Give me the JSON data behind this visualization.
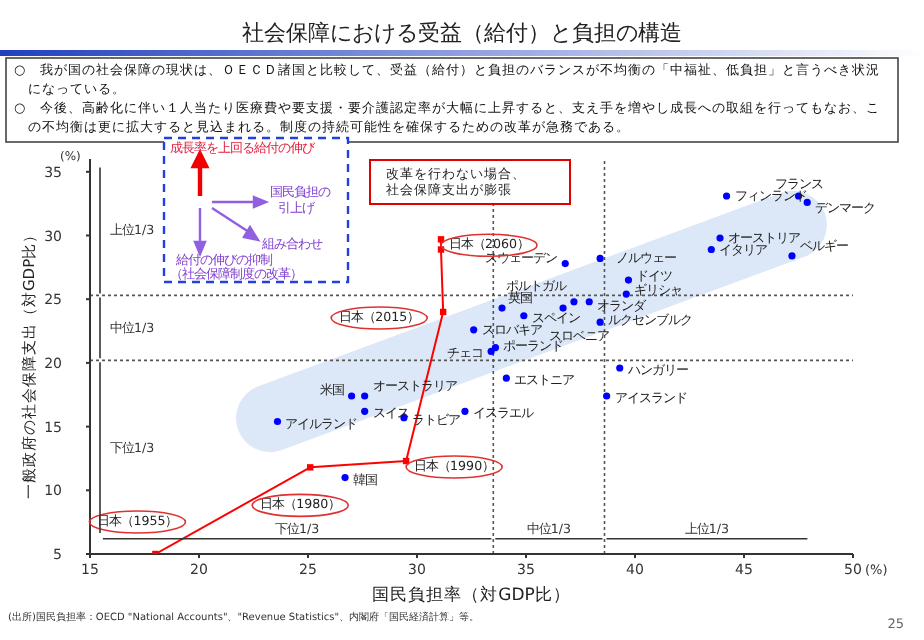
{
  "chart_data": {
    "type": "scatter",
    "title": "社会保障における受益（給付）と負担の構造",
    "subtitle": "○　我が国の社会保障の現状は、ＯＥＣＤ諸国と比較して、受益（給付）と負担のバランスが不均衡の「中福祉、低負担」と言うべき状況になっている。\n○　今後、高齢化に伴い１人当たり医療費や要支援・要介護認定率が大幅に上昇すると、支え手を増やし成長への取組を行ってもなお、この不均衡は更に拡大すると見込まれる。制度の持続可能性を確保するための改革が急務である。",
    "xlabel": "国民負担率（対GDP比）",
    "ylabel": "一般政府の社会保障支出（対GDP比）",
    "xlim": [
      15,
      50
    ],
    "ylim": [
      5,
      36
    ],
    "xticks": [
      15,
      20,
      25,
      30,
      35,
      40,
      45,
      50
    ],
    "yticks": [
      5,
      10,
      15,
      20,
      25,
      30,
      35
    ],
    "grid": false,
    "marker": "circle",
    "series": [
      {
        "color": "#0000ff",
        "x": [
          44.2,
          47.5,
          47.9,
          43.9,
          43.5,
          47.2,
          36.8,
          38.4,
          39.7,
          39.6,
          37.2,
          37.9,
          33.9,
          34.9,
          36.7,
          38.4,
          32.6,
          33.4,
          33.6,
          34.1,
          39.3,
          38.7,
          32.2,
          27.0,
          27.6,
          27.6,
          23.6,
          29.4,
          26.7
        ],
        "values": [
          33.1,
          33.1,
          32.6,
          29.8,
          28.9,
          28.4,
          27.8,
          28.2,
          26.5,
          25.4,
          24.8,
          24.8,
          24.3,
          23.7,
          24.3,
          23.2,
          22.6,
          20.9,
          21.2,
          18.8,
          19.6,
          17.4,
          16.2,
          17.4,
          17.4,
          16.2,
          15.4,
          15.7,
          11.0
        ]
      },
      {
        "type": "line",
        "marker": "square",
        "color": "#ff0000",
        "x": [
          18.0,
          25.1,
          29.5,
          31.2,
          31.1,
          31.1
        ],
        "values": [
          5.0,
          11.8,
          12.3,
          24.0,
          28.9,
          29.7
        ]
      }
    ],
    "ref_lines": [
      {
        "axis": "x",
        "value": 33.5,
        "line_style": "dotted"
      },
      {
        "axis": "x",
        "value": 38.6,
        "line_style": "dotted"
      },
      {
        "axis": "y",
        "value": 25.3,
        "line_style": "dotted"
      },
      {
        "axis": "y",
        "value": 20.2,
        "line_style": "dotted"
      }
    ],
    "annotations": [
      {
        "text": "フィンランド",
        "x": 44.2,
        "y": 33.1
      },
      {
        "text": "フランス",
        "x": 47.5,
        "y": 33.1
      },
      {
        "text": "デンマーク",
        "x": 47.9,
        "y": 32.6
      },
      {
        "text": "オーストリア",
        "x": 43.9,
        "y": 29.8
      },
      {
        "text": "イタリア",
        "x": 43.5,
        "y": 28.9
      },
      {
        "text": "ベルギー",
        "x": 47.2,
        "y": 28.4
      },
      {
        "text": "スウェーデン",
        "x": 36.8,
        "y": 27.8
      },
      {
        "text": "ノルウェー",
        "x": 38.4,
        "y": 28.2
      },
      {
        "text": "ドイツ",
        "x": 39.7,
        "y": 26.5
      },
      {
        "text": "ギリシャ",
        "x": 39.6,
        "y": 25.4
      },
      {
        "text": "ポルトガル",
        "x": 37.2,
        "y": 24.8
      },
      {
        "text": "オランダ",
        "x": 37.9,
        "y": 24.8
      },
      {
        "text": "英国",
        "x": 33.9,
        "y": 24.3
      },
      {
        "text": "スペイン",
        "x": 34.9,
        "y": 23.7
      },
      {
        "text": "スロベニア",
        "x": 36.7,
        "y": 24.3
      },
      {
        "text": "ルクセンブルク",
        "x": 38.4,
        "y": 23.2
      },
      {
        "text": "スロバキア",
        "x": 32.6,
        "y": 22.6
      },
      {
        "text": "チェコ",
        "x": 33.4,
        "y": 20.9
      },
      {
        "text": "ポーランド",
        "x": 33.6,
        "y": 21.2
      },
      {
        "text": "エストニア",
        "x": 34.1,
        "y": 18.8
      },
      {
        "text": "ハンガリー",
        "x": 39.3,
        "y": 19.6
      },
      {
        "text": "アイスランド",
        "x": 38.7,
        "y": 17.4
      },
      {
        "text": "イスラエル",
        "x": 32.2,
        "y": 16.2
      },
      {
        "text": "米国",
        "x": 27.0,
        "y": 17.4
      },
      {
        "text": "オーストラリア",
        "x": 27.6,
        "y": 17.4
      },
      {
        "text": "スイス",
        "x": 27.6,
        "y": 16.2
      },
      {
        "text": "アイルランド",
        "x": 23.6,
        "y": 15.4
      },
      {
        "text": "ラトビア",
        "x": 29.4,
        "y": 15.7
      },
      {
        "text": "韓国",
        "x": 26.7,
        "y": 11.0
      },
      {
        "text": "日本（1955）",
        "x": 18.0,
        "y": 5.0
      },
      {
        "text": "日本（1980）",
        "x": 25.1,
        "y": 11.8
      },
      {
        "text": "日本（1990）",
        "x": 29.5,
        "y": 12.3
      },
      {
        "text": "日本（2015）",
        "x": 31.2,
        "y": 24.0
      },
      {
        "text": "日本（2060）",
        "x": 31.1,
        "y": 29.7
      },
      "改革を行わない場合、",
      "社会保障支出が膨張",
      "成長率を上回る給付の伸び",
      "国民負担の",
      "引上げ",
      "組み合わせ",
      "給付の伸びの抑制",
      "（社会保障制度の改革）",
      "上位1/3",
      "中位1/3",
      "下位1/3",
      "下位1/3",
      "中位1/3",
      "上位1/3",
      "(%)",
      "(%)",
      "(出所)国民負担率：OECD \"National Accounts\"、\"Revenue Statistics\"、内閣府「国民経済計算」等。",
      "25"
    ]
  }
}
